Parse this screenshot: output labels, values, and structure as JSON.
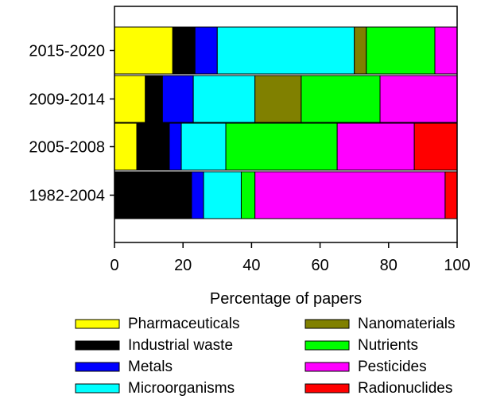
{
  "chart_data": {
    "type": "bar",
    "orientation": "horizontal",
    "stacked": true,
    "categories": [
      "2015-2020",
      "2009-2014",
      "2005-2008",
      "1982-2004"
    ],
    "xlabel": "Percentage of papers",
    "ylabel": "",
    "xlim": [
      0,
      100
    ],
    "xticks": [
      "0",
      "20",
      "40",
      "60",
      "80",
      "100"
    ],
    "grid": false,
    "legend_position": "bottom",
    "series": [
      {
        "name": "Pharmaceuticals",
        "color": "#FFFF00",
        "values": [
          17,
          9,
          6.5,
          0
        ]
      },
      {
        "name": "Industrial waste",
        "color": "#000000",
        "values": [
          6.5,
          5,
          9.5,
          22.5
        ]
      },
      {
        "name": "Metals",
        "color": "#0000FF",
        "values": [
          6.5,
          9,
          3.5,
          3.5
        ]
      },
      {
        "name": "Microorganisms",
        "color": "#00FFFF",
        "values": [
          40,
          18,
          13,
          11
        ]
      },
      {
        "name": "Nanomaterials",
        "color": "#808000",
        "values": [
          3.5,
          13.5,
          0,
          0
        ]
      },
      {
        "name": "Nutrients",
        "color": "#00FF00",
        "values": [
          20,
          23,
          32.5,
          4
        ]
      },
      {
        "name": "Pesticides",
        "color": "#FF00FF",
        "values": [
          6.5,
          22.5,
          22.5,
          55.5
        ]
      },
      {
        "name": "Radionuclides",
        "color": "#FF0000",
        "values": [
          0,
          0,
          12.5,
          3.5
        ]
      }
    ]
  }
}
